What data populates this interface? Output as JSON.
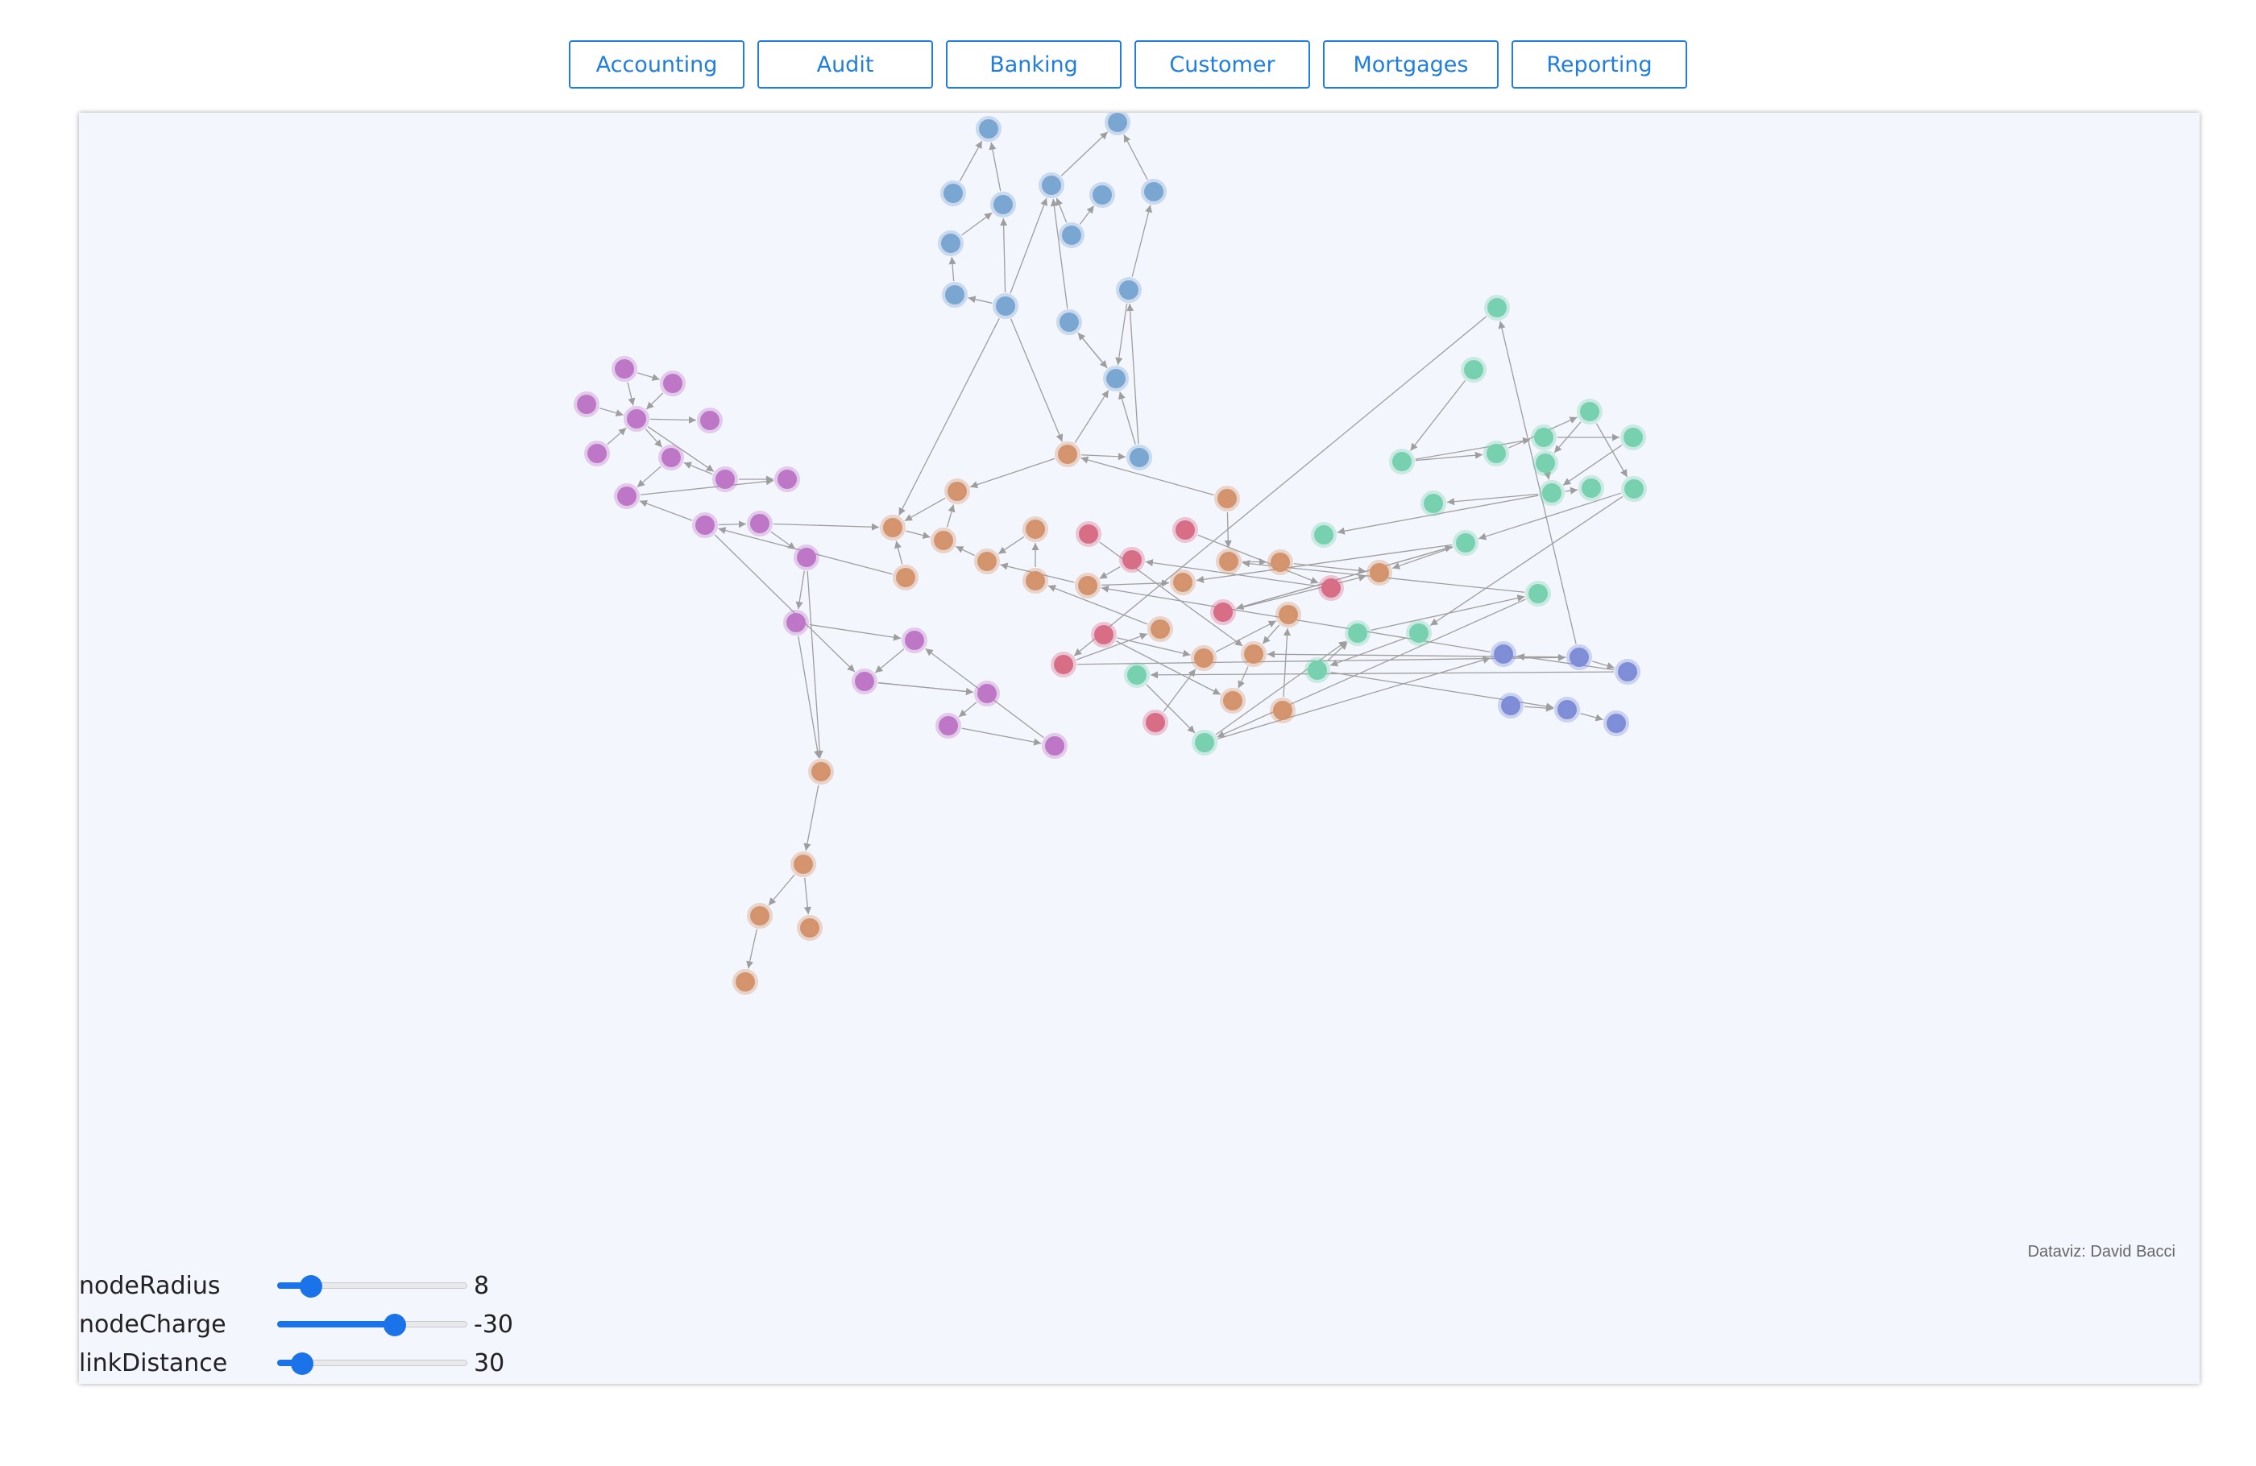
{
  "filters": [
    {
      "label": "Accounting"
    },
    {
      "label": "Audit"
    },
    {
      "label": "Banking"
    },
    {
      "label": "Customer"
    },
    {
      "label": "Mortgages"
    },
    {
      "label": "Reporting"
    }
  ],
  "credit": "Dataviz: David Bacci",
  "controls": [
    {
      "label": "nodeRadius",
      "value": "8",
      "fraction": 0.18
    },
    {
      "label": "nodeCharge",
      "value": "-30",
      "fraction": 0.62
    },
    {
      "label": "linkDistance",
      "value": "30",
      "fraction": 0.13
    }
  ],
  "colors": {
    "accent": "#1a73e8",
    "edge": "#9e9e9e",
    "groups": {
      "blue": "#7aa7d2",
      "green": "#77d1b0",
      "purple": "#bd77c6",
      "orange": "#d3946e",
      "red": "#d76e86",
      "indigo": "#7f8ed6"
    }
  }
}
